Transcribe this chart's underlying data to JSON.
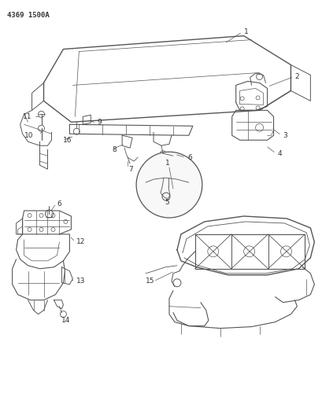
{
  "title": "4369 1500A",
  "bg": "#ffffff",
  "lc": "#555555",
  "tc": "#333333",
  "figsize": [
    4.1,
    5.33
  ],
  "dpi": 100,
  "title_fs": 6.5,
  "label_fs": 6.5
}
